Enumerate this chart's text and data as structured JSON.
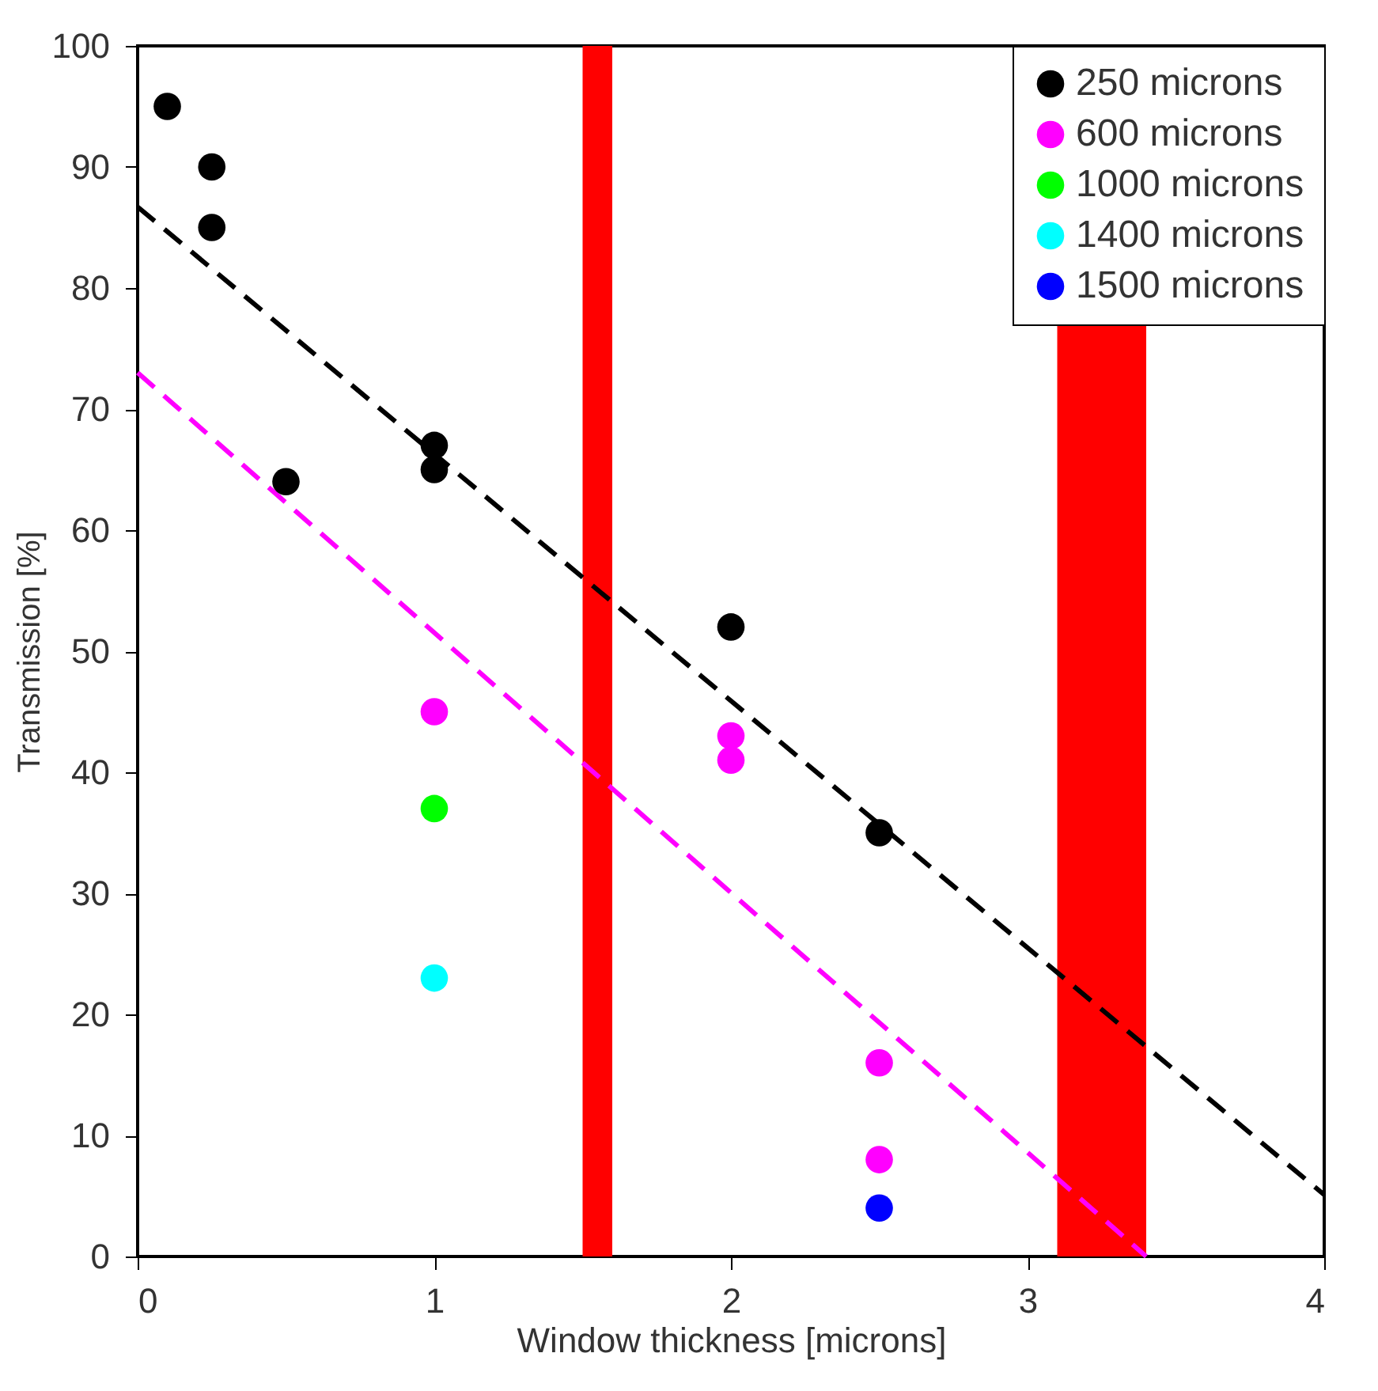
{
  "chart_data": {
    "type": "scatter",
    "xlabel": "Window thickness [microns]",
    "ylabel": "Transmission [%]",
    "xlim": [
      0,
      4
    ],
    "ylim": [
      0,
      100
    ],
    "xticks": [
      0,
      1,
      2,
      3,
      4
    ],
    "yticks": [
      0,
      10,
      20,
      30,
      40,
      50,
      60,
      70,
      80,
      90,
      100
    ],
    "grid": false,
    "legend": "top right",
    "marker": "circle",
    "series": [
      {
        "name": "250 microns",
        "color": "#000000",
        "x": [
          0.1,
          0.25,
          0.25,
          0.5,
          1,
          1,
          2,
          2.5
        ],
        "values": [
          95,
          90,
          85,
          64,
          67,
          65,
          52,
          35
        ]
      },
      {
        "name": "600 microns",
        "color": "#ff00ff",
        "x": [
          1,
          2,
          2,
          2.5,
          2.5
        ],
        "values": [
          45,
          43,
          41,
          16,
          8
        ]
      },
      {
        "name": "1000 microns",
        "color": "#00ff00",
        "x": [
          1
        ],
        "values": [
          37
        ]
      },
      {
        "name": "1400 microns",
        "color": "#00ffff",
        "x": [
          1
        ],
        "values": [
          23
        ]
      },
      {
        "name": "1500 microns",
        "color": "#0000ff",
        "x": [
          2.5
        ],
        "values": [
          4
        ]
      },
      {
        "type": "line",
        "color": "#000000",
        "line_style": "dashed",
        "marker": "none",
        "x": [
          0,
          4
        ],
        "values": [
          86.7,
          5.1
        ]
      },
      {
        "type": "line",
        "color": "#ff00ff",
        "line_style": "dashed",
        "marker": "none",
        "x": [
          0,
          3.4
        ],
        "values": [
          73,
          0
        ]
      }
    ],
    "bands": [
      {
        "axis": "x",
        "from": 1.5,
        "to": 1.6,
        "color": "#ff0000"
      },
      {
        "axis": "x",
        "from": 3.1,
        "to": 3.4,
        "color": "#ff0000"
      }
    ]
  }
}
